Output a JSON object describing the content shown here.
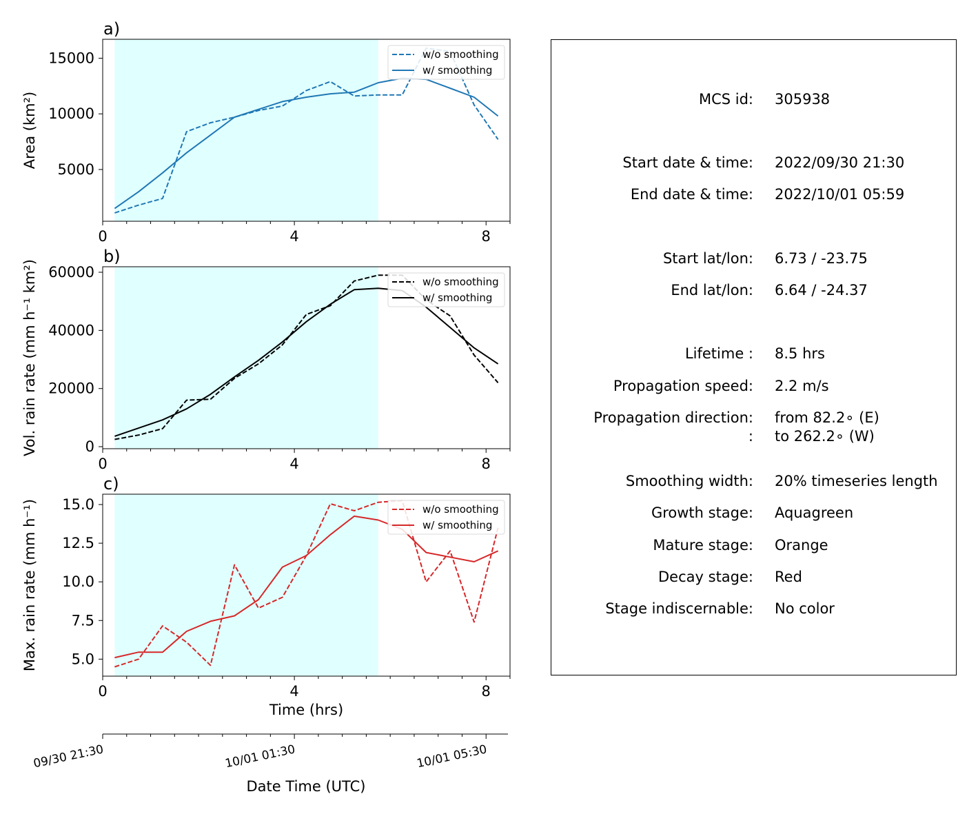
{
  "shared": {
    "shade_color": "#e0ffff",
    "x_ticks": [
      0,
      4,
      8
    ],
    "x_minor": [
      0.5,
      1,
      1.5,
      2,
      2.5,
      3,
      3.5,
      4.5,
      5,
      5.5,
      6,
      6.5,
      7,
      7.5,
      8.5
    ],
    "shade_range": [
      0.25,
      5.75
    ],
    "legend_raw": "w/o smoothing",
    "legend_smooth": "w/ smoothing"
  },
  "chart_data": [
    {
      "type": "line",
      "panel_label": "a)",
      "ylabel": "Area  (km²)",
      "color": "#1f77b4",
      "xlim": [
        0,
        8.5
      ],
      "ylim": [
        350,
        16700
      ],
      "y_ticks": [
        5000,
        10000,
        15000
      ],
      "x": [
        0.25,
        0.75,
        1.25,
        1.75,
        2.25,
        2.75,
        3.25,
        3.75,
        4.25,
        4.75,
        5.25,
        5.75,
        6.25,
        6.75,
        7.25,
        7.75,
        8.25
      ],
      "series": [
        {
          "name": "w/o smoothing",
          "dash": true,
          "values": [
            1100,
            1800,
            2400,
            8400,
            9200,
            9700,
            10300,
            10700,
            12100,
            12900,
            11600,
            11700,
            11700,
            15900,
            15600,
            10800,
            7700
          ]
        },
        {
          "name": "w/ smoothing",
          "dash": false,
          "values": [
            1500,
            3000,
            4700,
            6500,
            8100,
            9700,
            10400,
            11100,
            11500,
            11800,
            11950,
            12800,
            13200,
            13100,
            12300,
            11500,
            9800
          ]
        }
      ]
    },
    {
      "type": "line",
      "panel_label": "b)",
      "ylabel": "Vol. rain rate (mm h⁻¹ km²)",
      "color": "#000000",
      "xlim": [
        0,
        8.5
      ],
      "ylim": [
        -700,
        61900
      ],
      "y_ticks": [
        0,
        20000,
        40000,
        60000
      ],
      "x": [
        0.25,
        0.75,
        1.25,
        1.75,
        2.25,
        2.75,
        3.25,
        3.75,
        4.25,
        4.75,
        5.25,
        5.75,
        6.25,
        6.75,
        7.25,
        7.75,
        8.25
      ],
      "series": [
        {
          "name": "w/o smoothing",
          "dash": true,
          "values": [
            2500,
            4000,
            6200,
            16000,
            16300,
            23500,
            28500,
            35000,
            45500,
            48500,
            57000,
            59000,
            59000,
            50500,
            45000,
            31500,
            22000
          ]
        },
        {
          "name": "w/ smoothing",
          "dash": false,
          "values": [
            3600,
            6400,
            9200,
            13000,
            18000,
            24000,
            29700,
            36000,
            43000,
            49000,
            54000,
            54500,
            53700,
            48000,
            41000,
            34000,
            28500
          ]
        }
      ]
    },
    {
      "type": "line",
      "panel_label": "c)",
      "ylabel": "Max. rain rate  (mm h⁻¹)",
      "xlabel": "Time (hrs)",
      "color": "#d62728",
      "xlim": [
        0,
        8.5
      ],
      "ylim": [
        3.9,
        15.67
      ],
      "y_ticks": [
        5.0,
        7.5,
        10.0,
        12.5,
        15.0
      ],
      "y_tick_labels": [
        "5.0",
        "7.5",
        "10.0",
        "12.5",
        "15.0"
      ],
      "x": [
        0.25,
        0.75,
        1.25,
        1.75,
        2.25,
        2.75,
        3.25,
        3.75,
        4.25,
        4.75,
        5.25,
        5.75,
        6.25,
        6.75,
        7.25,
        7.75,
        8.25
      ],
      "series": [
        {
          "name": "w/o smoothing",
          "dash": true,
          "values": [
            4.5,
            5.0,
            7.15,
            6.1,
            4.6,
            11.1,
            8.3,
            9.0,
            11.7,
            15.05,
            14.6,
            15.15,
            15.25,
            10.0,
            12.0,
            7.4,
            13.5
          ]
        },
        {
          "name": "w/ smoothing",
          "dash": false,
          "values": [
            5.1,
            5.45,
            5.45,
            6.8,
            7.45,
            7.8,
            8.85,
            10.95,
            11.7,
            13.05,
            14.25,
            14.0,
            13.4,
            11.9,
            11.6,
            11.3,
            12.0
          ]
        }
      ]
    }
  ],
  "date_axis": {
    "xlabel": "Date Time (UTC)",
    "ticks": [
      {
        "t": 0,
        "label": "09/30 21:30"
      },
      {
        "t": 4,
        "label": "10/01 01:30"
      },
      {
        "t": 8,
        "label": "10/01 05:30"
      }
    ],
    "minor": [
      0.5,
      1,
      1.5,
      2,
      2.5,
      3,
      3.5,
      4.5,
      5,
      5.5,
      6,
      6.5,
      7,
      7.5
    ],
    "xlim": [
      0,
      8.5
    ]
  },
  "info": [
    {
      "label": "MCS id:",
      "value": "305938"
    },
    {
      "label": "Start date & time:",
      "value": "2022/09/30 21:30"
    },
    {
      "label": "End date & time:",
      "value": "2022/10/01 05:59"
    },
    {
      "label": "Start lat/lon:",
      "value": "6.73 / -23.75"
    },
    {
      "label": "End lat/lon:",
      "value": "6.64 / -24.37"
    },
    {
      "label": "Lifetime :",
      "value": "8.5 hrs"
    },
    {
      "label": "Propagation speed:",
      "value": "2.2 m/s"
    },
    {
      "label": "Propagation direction:",
      "value": "from  82.2∘ (E)"
    },
    {
      "label": ":",
      "value": "to   262.2∘ (W)"
    },
    {
      "label": "Smoothing width:",
      "value": "20% timeseries length"
    },
    {
      "label": "Growth stage:",
      "value": "Aquagreen"
    },
    {
      "label": "Mature stage:",
      "value": "Orange"
    },
    {
      "label": "Decay stage:",
      "value": "Red"
    },
    {
      "label": "Stage indiscernable:",
      "value": "No color"
    }
  ]
}
